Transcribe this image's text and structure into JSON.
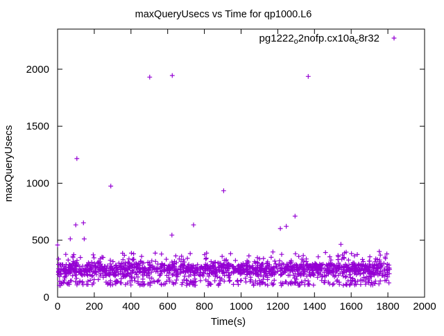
{
  "chart_data": {
    "type": "scatter",
    "title": "maxQueryUsecs vs Time for qp1000.L6",
    "xlabel": "Time(s)",
    "ylabel": "maxQueryUsecs",
    "xlim": [
      0,
      2000
    ],
    "ylim": [
      0,
      2352
    ],
    "xticks": [
      0,
      200,
      400,
      600,
      800,
      1000,
      1200,
      1400,
      1600,
      1800,
      2000
    ],
    "yticks": [
      0,
      500,
      1000,
      1500,
      2000
    ],
    "grid": false,
    "tick_style": "inward-mirrored",
    "background_color": "#ffffff",
    "axis_color": "#000000",
    "legend": {
      "position": "top-right-inside",
      "items": [
        {
          "label_plain": "pg1222_o2nofp.cx10a_c8r32",
          "label_parts": [
            {
              "t": "pg1222"
            },
            {
              "t": "o",
              "sub": true
            },
            {
              "t": "2nofp.cx10a"
            },
            {
              "t": "c",
              "sub": true
            },
            {
              "t": "8r32"
            }
          ],
          "marker": "plus",
          "color": "#9400d3"
        }
      ]
    },
    "series": [
      {
        "name": "pg1222_o2nofp.cx10a_c8r32",
        "marker": "plus",
        "color": "#9400d3",
        "outlier_points": [
          [
            0,
            458
          ],
          [
            69,
            512
          ],
          [
            145,
            511
          ],
          [
            99,
            634
          ],
          [
            141,
            652
          ],
          [
            105,
            1216
          ],
          [
            290,
            975
          ],
          [
            502,
            1931
          ],
          [
            625,
            1945
          ],
          [
            623,
            545
          ],
          [
            741,
            634
          ],
          [
            905,
            934
          ],
          [
            1214,
            602
          ],
          [
            1246,
            622
          ],
          [
            1294,
            711
          ],
          [
            1366,
            1937
          ],
          [
            1544,
            464
          ],
          [
            1528,
            367
          ],
          [
            1753,
            401
          ]
        ],
        "dense_band": {
          "description": "dense noisy horizontal band of ~1500 samples, one per ~1.2s, between y=100 and y=400 with core around y=250",
          "count": 1500,
          "x_range": [
            0,
            1810
          ],
          "y_core": {
            "min": 135,
            "max": 360,
            "mean": 247
          },
          "lower_fringe": {
            "fraction": 0.13,
            "y_range": [
              103,
              152
            ]
          },
          "upper_scatter": {
            "fraction": 0.05,
            "y_range": [
              330,
              400
            ]
          },
          "seed": 1222
        }
      }
    ]
  }
}
